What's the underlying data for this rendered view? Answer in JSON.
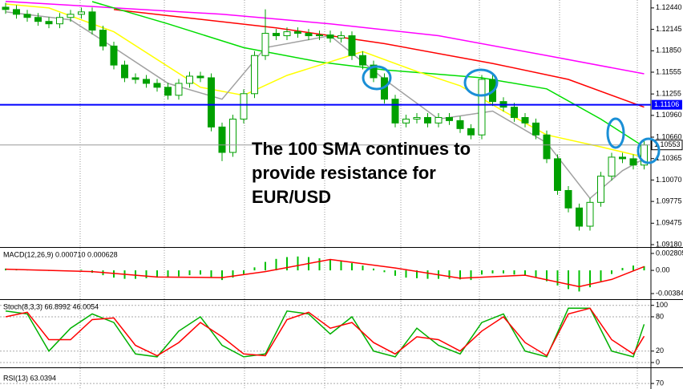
{
  "chart_data": [
    {
      "type": "candlestick",
      "annotation": [
        "The 100 SMA continues to",
        "provide resistance for",
        "EUR/USD"
      ],
      "open": [
        1.1245,
        1.12418,
        1.12352,
        1.12309,
        1.12254,
        1.12221,
        1.12309,
        1.12352,
        1.12385,
        1.12134,
        1.11915,
        1.11653,
        1.11478,
        1.11456,
        1.11401,
        1.11347,
        1.11237,
        1.11401,
        1.115,
        1.11478,
        1.108,
        1.1045,
        1.10909,
        1.11259,
        1.11784,
        1.1209,
        1.12057,
        1.12112,
        1.1209,
        1.12057,
        1.12068,
        1.12024,
        1.12057,
        1.11784,
        1.11653,
        1.11478,
        1.11183,
        1.10855,
        1.10909,
        1.10931,
        1.10855,
        1.10931,
        1.10888,
        1.10778,
        1.10691,
        1.11456,
        1.1115,
        1.11073,
        1.10931,
        1.10855,
        1.10691,
        1.10363,
        1.09926,
        1.09685,
        1.09434,
        1.09762,
        1.10123,
        1.10385,
        1.10363,
        1.10276
      ],
      "high": [
        1.1251,
        1.12478,
        1.12412,
        1.12369,
        1.12314,
        1.12369,
        1.12412,
        1.12445,
        1.12445,
        1.12194,
        1.11975,
        1.11713,
        1.11538,
        1.11516,
        1.11461,
        1.11407,
        1.11461,
        1.1156,
        1.1156,
        1.11538,
        1.1086,
        1.10969,
        1.11319,
        1.11844,
        1.1242,
        1.1215,
        1.12172,
        1.12172,
        1.1215,
        1.12128,
        1.12128,
        1.12117,
        1.12117,
        1.11844,
        1.11713,
        1.11538,
        1.11243,
        1.10969,
        1.10991,
        1.10991,
        1.10991,
        1.10991,
        1.10948,
        1.10838,
        1.11516,
        1.11516,
        1.1121,
        1.11133,
        1.10991,
        1.10915,
        1.10751,
        1.10423,
        1.09986,
        1.09745,
        1.09822,
        1.10183,
        1.10445,
        1.10445,
        1.10423,
        1.10613
      ],
      "low": [
        1.12358,
        1.12292,
        1.12249,
        1.12194,
        1.12161,
        1.12161,
        1.12249,
        1.12292,
        1.12074,
        1.11855,
        1.11593,
        1.11418,
        1.11396,
        1.11341,
        1.11287,
        1.11177,
        1.11177,
        1.11341,
        1.11418,
        1.1074,
        1.1033,
        1.1039,
        1.10849,
        1.11199,
        1.11724,
        1.11997,
        1.11997,
        1.1203,
        1.11997,
        1.11997,
        1.11964,
        1.11964,
        1.11724,
        1.11593,
        1.11418,
        1.11123,
        1.10795,
        1.10795,
        1.10849,
        1.10795,
        1.10795,
        1.10828,
        1.10718,
        1.10631,
        1.10631,
        1.1109,
        1.11013,
        1.10871,
        1.10795,
        1.10631,
        1.10303,
        1.09866,
        1.09625,
        1.09374,
        1.09374,
        1.09702,
        1.10063,
        1.10303,
        1.10216,
        1.10216
      ],
      "close": [
        1.12418,
        1.12352,
        1.12309,
        1.12254,
        1.12221,
        1.12309,
        1.12352,
        1.12385,
        1.12134,
        1.11915,
        1.11653,
        1.11478,
        1.11456,
        1.11401,
        1.11347,
        1.11237,
        1.11401,
        1.115,
        1.11478,
        1.108,
        1.1045,
        1.10909,
        1.11259,
        1.11784,
        1.1209,
        1.12057,
        1.12112,
        1.1209,
        1.12057,
        1.12068,
        1.12024,
        1.12057,
        1.11784,
        1.11653,
        1.11478,
        1.11183,
        1.10855,
        1.10909,
        1.10931,
        1.10855,
        1.10931,
        1.10888,
        1.10778,
        1.10691,
        1.11456,
        1.1115,
        1.11073,
        1.10931,
        1.10855,
        1.10691,
        1.10363,
        1.09926,
        1.09685,
        1.09434,
        1.09762,
        1.10123,
        1.10385,
        1.10363,
        1.10276,
        1.10553
      ],
      "color": "#00a000",
      "ylim": [
        1.09158,
        1.12549
      ],
      "yticks": [
        {
          "value": 1.1244,
          "label": "1.12440"
        },
        1.12145,
        {
          "value": 1.1185,
          "label": "1.11850"
        },
        1.11555,
        1.11255,
        {
          "value": 1.1096,
          "label": "1.10960"
        },
        {
          "value": 1.1066,
          "label": "1.10660"
        },
        1.10365,
        {
          "value": 1.1007,
          "label": "1.10070"
        },
        1.09775,
        1.09475,
        {
          "value": 1.0918,
          "label": "1.09180"
        }
      ],
      "hline": {
        "value": 1.11106,
        "color": "#0000ff"
      },
      "series": [
        {
          "color": "#ff00ff",
          "x": [
            0,
            20,
            30,
            40,
            50,
            59
          ],
          "values": [
            1.1253,
            1.12352,
            1.12221,
            1.12057,
            1.11784,
            1.11533
          ]
        },
        {
          "color": "#ff0000",
          "x": [
            10,
            25,
            35,
            45,
            52,
            59
          ],
          "values": [
            1.12418,
            1.12166,
            1.11948,
            1.11675,
            1.11456,
            1.11073
          ]
        },
        {
          "color": "#00dd00",
          "x": [
            8,
            15,
            22,
            29,
            35,
            44,
            50,
            55,
            59
          ],
          "values": [
            1.12527,
            1.12221,
            1.11893,
            1.11696,
            1.11587,
            1.11478,
            1.11325,
            1.10909,
            1.10527
          ]
        },
        {
          "color": "#ffff00",
          "x": [
            0,
            4,
            10,
            18,
            22,
            26,
            33,
            38,
            42,
            46,
            50,
            55,
            59
          ],
          "values": [
            1.12494,
            1.1244,
            1.12112,
            1.11347,
            1.11237,
            1.11511,
            1.11839,
            1.11565,
            1.11368,
            1.11019,
            1.10691,
            1.10527,
            1.10385
          ]
        },
        {
          "color": "#a0a0a0",
          "x": [
            0,
            6,
            10,
            15,
            20,
            24,
            30,
            35,
            40,
            45,
            50,
            54,
            57,
            59
          ],
          "values": [
            1.12385,
            1.12276,
            1.11893,
            1.11401,
            1.11183,
            1.11893,
            1.12057,
            1.11456,
            1.10909,
            1.11019,
            1.10582,
            1.09817,
            1.10199,
            1.10363
          ]
        }
      ]
    },
    {
      "type": "macd",
      "title": "MACD(12,26,9) 0.000710 0.000628",
      "values": [
        0.0003,
        0.0002,
        0.0001,
        0,
        -0.0001,
        -0.0001,
        0,
        0.0001,
        -0.0004,
        -0.0008,
        -0.0012,
        -0.0014,
        -0.0014,
        -0.0013,
        -0.0012,
        -0.0012,
        -0.001,
        -0.0008,
        -0.0007,
        -0.0012,
        -0.0016,
        -0.0012,
        -0.0006,
        0.0005,
        0.0014,
        0.0019,
        0.0022,
        0.0023,
        0.0022,
        0.002,
        0.0018,
        0.0016,
        0.0012,
        0.0008,
        0.0003,
        -0.0003,
        -0.0009,
        -0.0012,
        -0.0013,
        -0.0014,
        -0.0014,
        -0.0014,
        -0.0015,
        -0.0016,
        -0.0007,
        -0.0005,
        -0.0005,
        -0.0007,
        -0.0009,
        -0.0012,
        -0.0018,
        -0.0025,
        -0.0031,
        -0.0035,
        -0.0028,
        -0.0018,
        -0.0006,
        0.0004,
        0.0008,
        0.0007
      ],
      "color": "#00c000",
      "series": [
        {
          "color": "#ff0000",
          "x": [
            0,
            8,
            14,
            20,
            24,
            30,
            36,
            42,
            48,
            53,
            56,
            59
          ],
          "values": [
            0.0002,
            -0.0002,
            -0.0011,
            -0.0012,
            -0.0002,
            0.0018,
            0.0004,
            -0.0013,
            -0.0008,
            -0.0027,
            -0.0015,
            0.000628
          ]
        }
      ],
      "ylim": [
        -0.00464,
        0.0036
      ],
      "yticks": [
        0.002805,
        {
          "value": 0,
          "label": "0.00"
        },
        -0.003845
      ]
    },
    {
      "type": "line",
      "title": "Stoch(8,3,3) 66.8992 46.0054",
      "x": [
        0,
        2,
        4,
        6,
        8,
        10,
        12,
        14,
        16,
        18,
        20,
        22,
        24,
        26,
        28,
        30,
        32,
        34,
        36,
        38,
        40,
        42,
        44,
        46,
        48,
        50,
        52,
        54,
        56,
        58,
        59
      ],
      "series": [
        {
          "color": "#00b000",
          "values": [
            90,
            85,
            20,
            60,
            85,
            70,
            15,
            10,
            55,
            80,
            30,
            10,
            15,
            90,
            85,
            50,
            80,
            20,
            10,
            60,
            30,
            15,
            70,
            85,
            20,
            10,
            95,
            95,
            20,
            10,
            66.8992
          ]
        },
        {
          "color": "#ff0000",
          "values": [
            80,
            88,
            40,
            40,
            75,
            78,
            30,
            12,
            35,
            70,
            45,
            15,
            12,
            75,
            88,
            60,
            70,
            35,
            15,
            45,
            40,
            20,
            55,
            80,
            35,
            12,
            85,
            95,
            40,
            15,
            46.0054
          ]
        }
      ],
      "ylim": [
        -7,
        108
      ],
      "yticks": [
        100,
        80,
        20,
        0
      ]
    },
    {
      "type": "line",
      "title": "RSI(13) 63.0394",
      "x": [],
      "series": [],
      "ylim": [
        0,
        100
      ],
      "yticks": [
        70
      ]
    }
  ]
}
